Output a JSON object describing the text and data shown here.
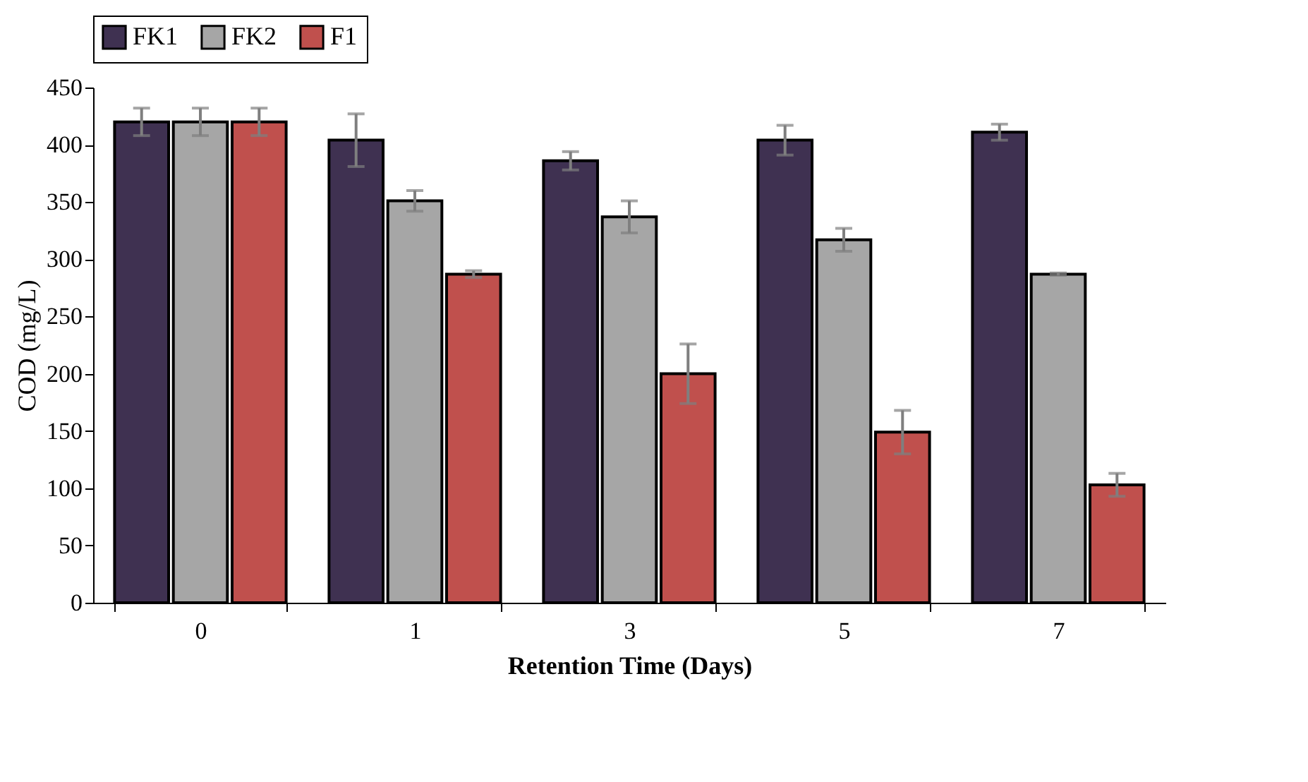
{
  "chart_data": {
    "type": "bar",
    "xlabel": "Retention Time (Days)",
    "ylabel": "COD (mg/L)",
    "categories": [
      "0",
      "1",
      "3",
      "5",
      "7"
    ],
    "series": [
      {
        "name": "FK1",
        "color": "#3f3151",
        "values": [
          420,
          404,
          386,
          404,
          411
        ],
        "errors": [
          12,
          23,
          8,
          13,
          7
        ]
      },
      {
        "name": "FK2",
        "color": "#a6a6a6",
        "values": [
          420,
          351,
          337,
          317,
          287
        ],
        "errors": [
          12,
          9,
          14,
          10,
          1
        ]
      },
      {
        "name": "F1",
        "color": "#c0504d",
        "values": [
          420,
          287,
          200,
          149,
          103
        ],
        "errors": [
          12,
          3,
          26,
          19,
          10
        ]
      }
    ],
    "ylim": [
      0,
      450
    ],
    "yticks": [
      0,
      50,
      100,
      150,
      200,
      250,
      300,
      350,
      400,
      450
    ],
    "grid": false,
    "legend": "top"
  }
}
